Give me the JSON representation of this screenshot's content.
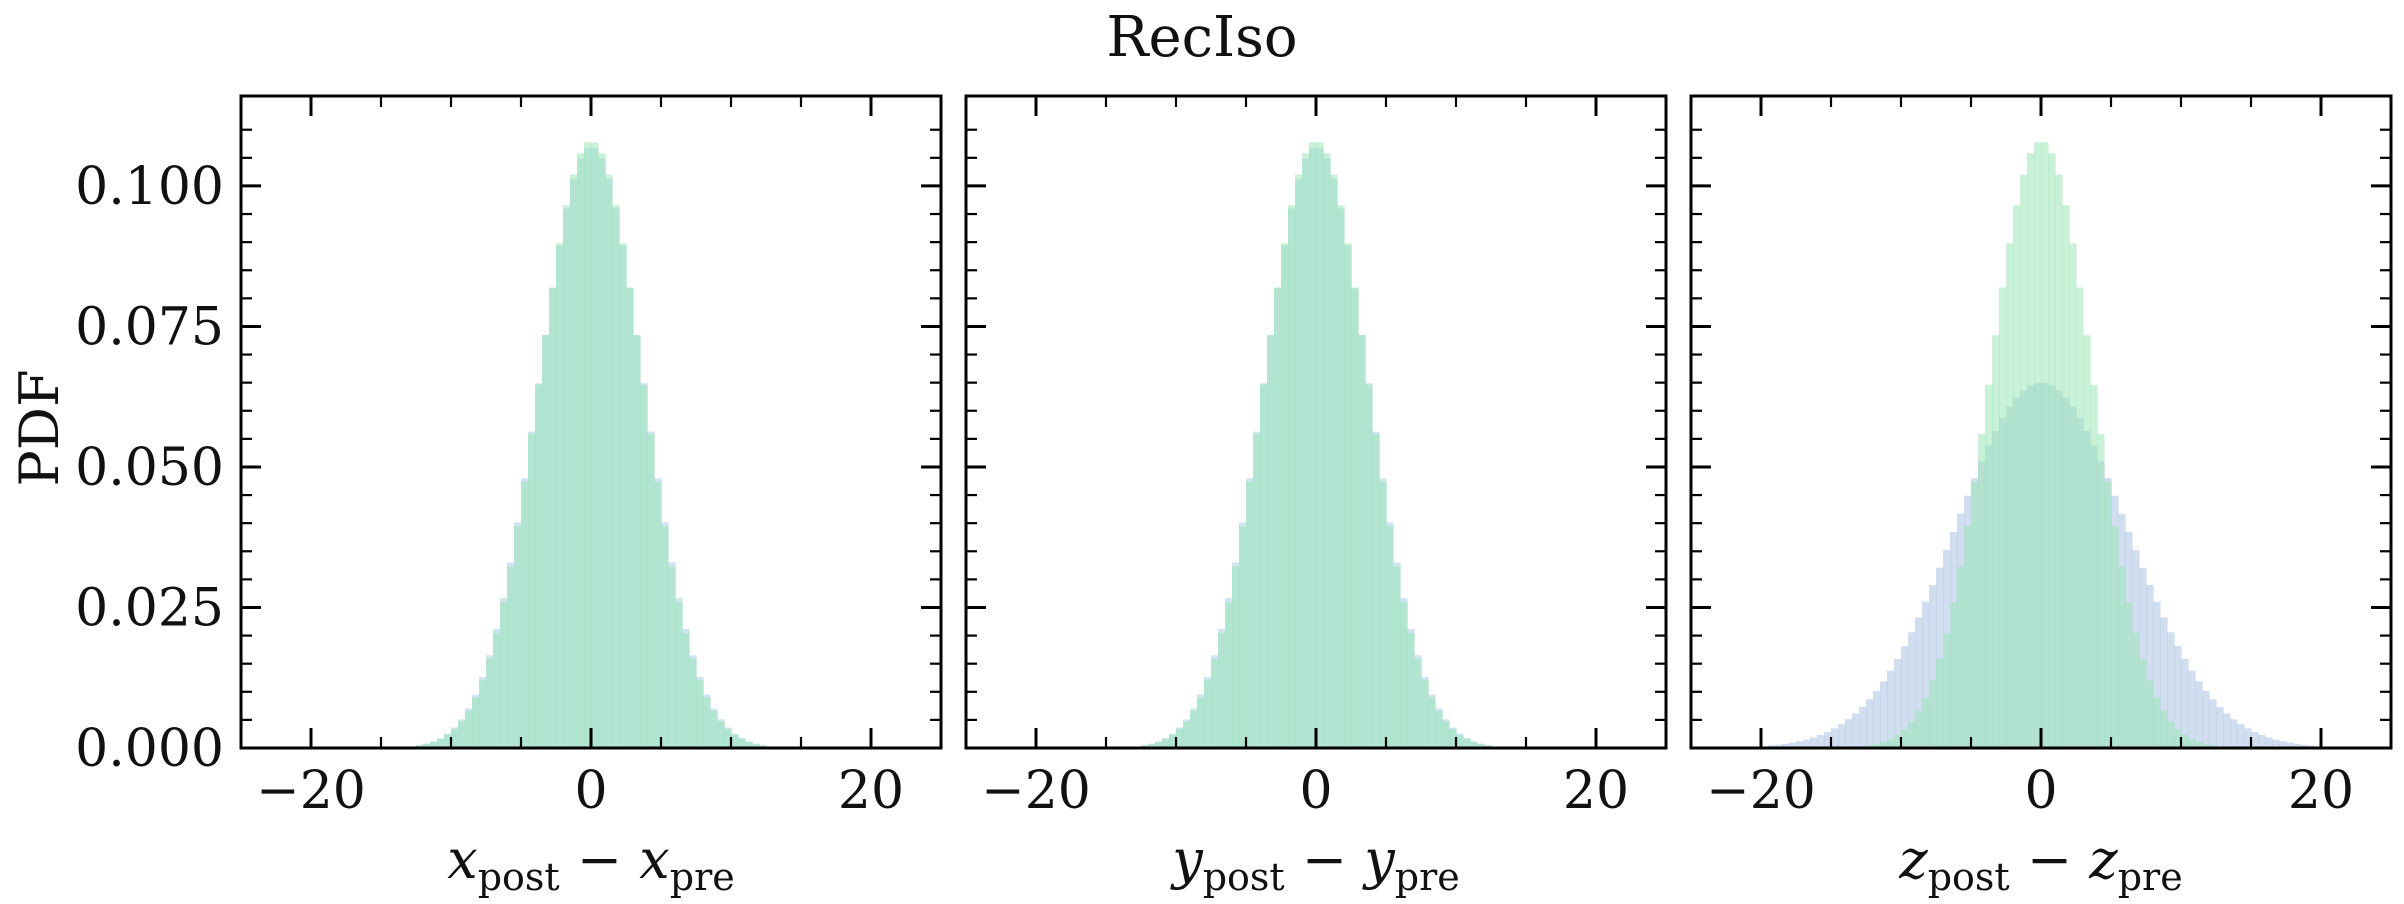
{
  "figure": {
    "title": "RecIso",
    "ylabel": "PDF"
  },
  "chart_data": [
    {
      "type": "histogram",
      "panel": "x",
      "xlabel_parts": [
        "x",
        "post",
        " − ",
        "x",
        "pre"
      ],
      "xlim": [
        -25,
        25
      ],
      "ylim": [
        0,
        0.116
      ],
      "xticks": [
        -20,
        0,
        20
      ],
      "xtick_labels": [
        "−20",
        "0",
        "20"
      ],
      "yticks": [
        0,
        0.025,
        0.05,
        0.075,
        0.1
      ],
      "ytick_labels": [
        "0.000",
        "0.025",
        "0.050",
        "0.075",
        "0.100"
      ],
      "grid": false,
      "series": [
        {
          "distribution": "gaussian",
          "mean": 0,
          "std": 3.75,
          "peak_pdf": 0.107,
          "color": "#a7cfe4",
          "opacity": 0.55
        },
        {
          "distribution": "gaussian",
          "mean": 0,
          "std": 3.7,
          "peak_pdf": 0.108,
          "color": "#9ae5b8",
          "opacity": 0.55
        }
      ]
    },
    {
      "type": "histogram",
      "panel": "y",
      "xlabel_parts": [
        "y",
        "post",
        " − ",
        "y",
        "pre"
      ],
      "xlim": [
        -25,
        25
      ],
      "ylim": [
        0,
        0.116
      ],
      "xticks": [
        -20,
        0,
        20
      ],
      "xtick_labels": [
        "−20",
        "0",
        "20"
      ],
      "yticks": [
        0,
        0.025,
        0.05,
        0.075,
        0.1
      ],
      "grid": false,
      "series": [
        {
          "distribution": "gaussian",
          "mean": 0,
          "std": 3.75,
          "peak_pdf": 0.107,
          "color": "#a7cfe4",
          "opacity": 0.55
        },
        {
          "distribution": "gaussian",
          "mean": 0,
          "std": 3.7,
          "peak_pdf": 0.108,
          "color": "#9ae5b8",
          "opacity": 0.55
        }
      ]
    },
    {
      "type": "histogram",
      "panel": "z",
      "xlabel_parts": [
        "z",
        "post",
        " − ",
        "z",
        "pre"
      ],
      "xlim": [
        -25,
        25
      ],
      "ylim": [
        0,
        0.116
      ],
      "xticks": [
        -20,
        0,
        20
      ],
      "xtick_labels": [
        "−20",
        "0",
        "20"
      ],
      "yticks": [
        0,
        0.025,
        0.05,
        0.075,
        0.1
      ],
      "grid": false,
      "series": [
        {
          "distribution": "gaussian",
          "mean": 0,
          "std": 6.1,
          "peak_pdf": 0.065,
          "color": "#a9c3e3",
          "opacity": 0.55
        },
        {
          "distribution": "gaussian",
          "mean": 0,
          "std": 3.7,
          "peak_pdf": 0.108,
          "color": "#9ae5b8",
          "opacity": 0.55
        }
      ]
    }
  ]
}
